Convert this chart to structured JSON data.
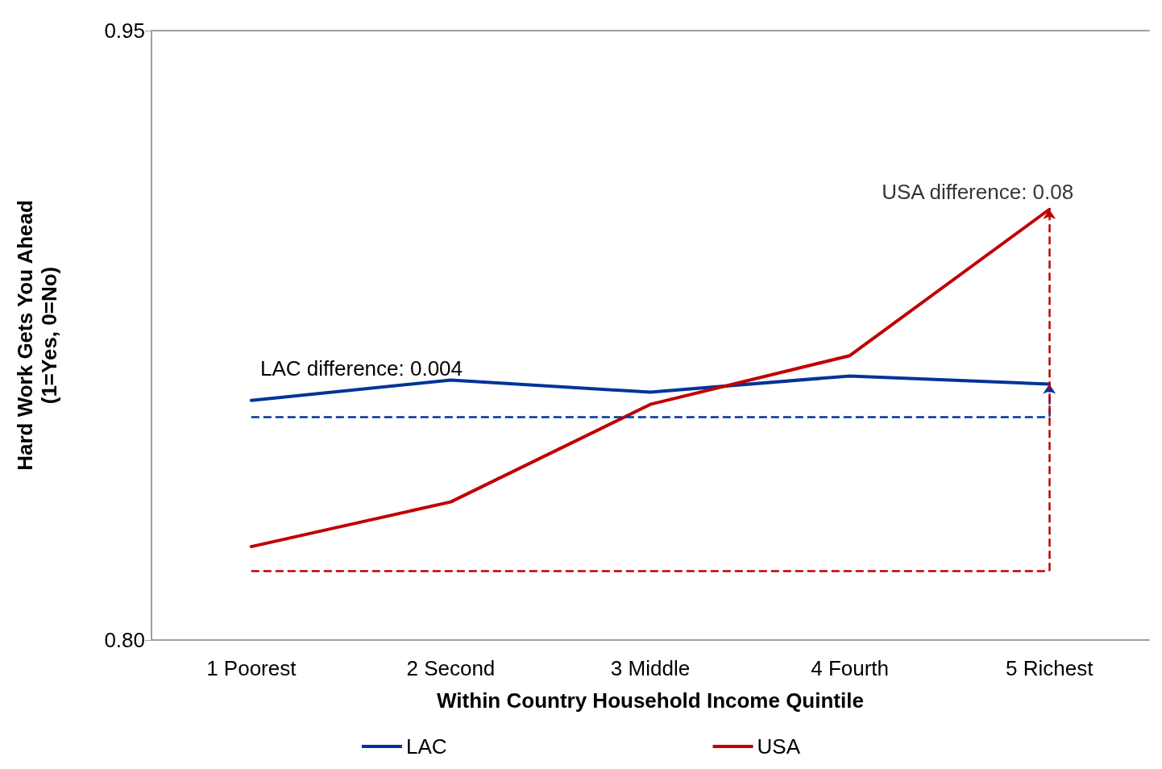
{
  "chart_data": {
    "type": "line",
    "xlabel": "Within Country Household Income Quintile",
    "ylabel": "Hard Work Gets You Ahead\n(1=Yes, 0=No)",
    "categories": [
      "1 Poorest",
      "2 Second",
      "3 Middle",
      "4 Fourth",
      "5 Richest"
    ],
    "series": [
      {
        "name": "LAC",
        "color": "#003399",
        "values": [
          0.859,
          0.864,
          0.861,
          0.865,
          0.863
        ]
      },
      {
        "name": "USA",
        "color": "#c00000",
        "values": [
          0.823,
          0.834,
          0.858,
          0.87,
          0.906
        ]
      }
    ],
    "ref_lines": [
      {
        "axis": "y",
        "value": 0.855,
        "label": null,
        "color": "#003399",
        "line_style": "dashed"
      },
      {
        "axis": "y",
        "value": 0.817,
        "label": null,
        "color": "#c00000",
        "line_style": "dashed"
      }
    ],
    "annotations": [
      "LAC difference: 0.004",
      {
        "text": "USA difference: 0.08",
        "x": "5 Richest",
        "y": 0.906
      }
    ],
    "ylim": [
      0.8,
      0.95
    ],
    "yticks": [
      {
        "value": 0.8,
        "label": "0.80"
      },
      0.95
    ],
    "legend": "bottom",
    "marker": "none",
    "line_style": "solid"
  }
}
